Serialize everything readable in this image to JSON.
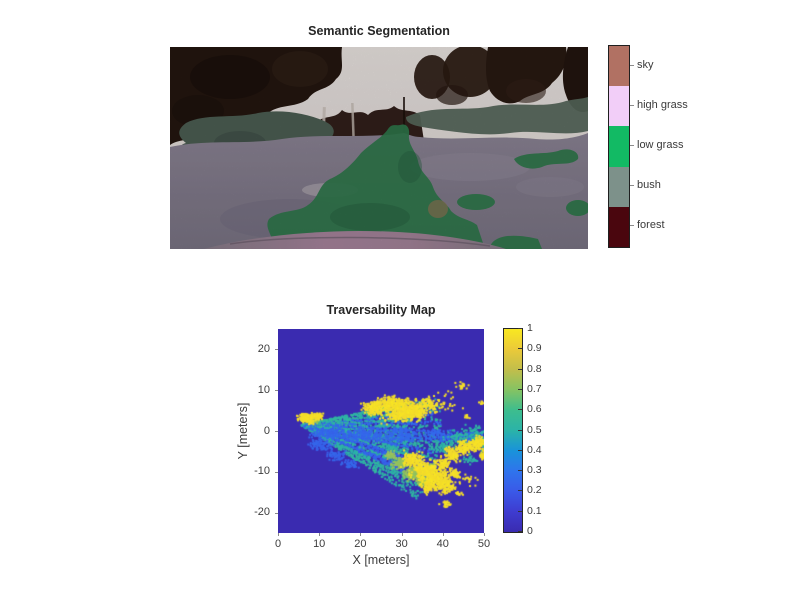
{
  "figure": {
    "background": "#FFFFFF"
  },
  "chart_data": [
    {
      "type": "image",
      "title": "Semantic Segmentation",
      "description": "Forward camera photo of a forest trail overlaid with semantic segmentation masks: dark forest trees at top, gray-green bush regions, purple-gray grass field, green low-grass trail in the center, pink vehicle hood at bottom",
      "classes": [
        {
          "label": "sky",
          "color": "#B17163"
        },
        {
          "label": "high grass",
          "color": "#F2CEF8"
        },
        {
          "label": "low grass",
          "color": "#12BA64"
        },
        {
          "label": "bush",
          "color": "#7D918A"
        },
        {
          "label": "forest",
          "color": "#4A060E"
        }
      ],
      "colorbar": {
        "position": "right"
      }
    },
    {
      "type": "heatmap",
      "title": "Traversability Map",
      "xlabel": "X [meters]",
      "ylabel": "Y [meters]",
      "xlim": [
        0,
        50
      ],
      "ylim": [
        -25,
        25
      ],
      "xticks": [
        "0",
        "10",
        "20",
        "30",
        "40",
        "50"
      ],
      "yticks": [
        "20",
        "10",
        "0",
        "-10",
        "-20"
      ],
      "background_value": 0,
      "colorbar": {
        "min": 0,
        "max": 1,
        "position": "right",
        "ticks": [
          "1",
          "0.9",
          "0.8",
          "0.7",
          "0.6",
          "0.5",
          "0.4",
          "0.3",
          "0.2",
          "0.1",
          "0"
        ]
      },
      "colormap": [
        [
          0.0,
          "#3A2BB0"
        ],
        [
          0.1,
          "#3E3CD0"
        ],
        [
          0.2,
          "#3A59E8"
        ],
        [
          0.3,
          "#2F74EC"
        ],
        [
          0.4,
          "#1993DA"
        ],
        [
          0.5,
          "#2BB3A8"
        ],
        [
          0.6,
          "#3DBD8E"
        ],
        [
          0.7,
          "#85C363"
        ],
        [
          0.8,
          "#C2BE4B"
        ],
        [
          0.9,
          "#EBCA39"
        ],
        [
          1.0,
          "#F9E821"
        ]
      ],
      "fan": {
        "apex_x": 5.5,
        "apex_y": 1.5,
        "angle_min_deg": -33,
        "angle_max_deg": 12,
        "radius_max": 34,
        "n": 3400,
        "value_main": 0.52,
        "value_alt": 0.25
      },
      "clusters": [
        {
          "v": 0.25,
          "x": 12,
          "y": -0.5,
          "rx": 4,
          "ry": 1.4,
          "n": 140
        },
        {
          "v": 0.25,
          "x": 20,
          "y": -1,
          "rx": 6,
          "ry": 1.8,
          "n": 200
        },
        {
          "v": 0.26,
          "x": 30,
          "y": -1.3,
          "rx": 6,
          "ry": 1.8,
          "n": 170
        },
        {
          "v": 0.26,
          "x": 40,
          "y": -1.4,
          "rx": 5,
          "ry": 1.6,
          "n": 120
        },
        {
          "v": 0.26,
          "x": 47,
          "y": -1.5,
          "rx": 3.5,
          "ry": 1.4,
          "n": 80
        },
        {
          "v": 0.24,
          "x": 10.5,
          "y": -3.5,
          "rx": 3,
          "ry": 1.5,
          "n": 90
        },
        {
          "v": 0.24,
          "x": 14,
          "y": -6,
          "rx": 2.5,
          "ry": 1.5,
          "n": 60
        },
        {
          "v": 0.25,
          "x": 17.5,
          "y": -8,
          "rx": 2,
          "ry": 1.2,
          "n": 40
        },
        {
          "v": 0.52,
          "x": 40,
          "y": -4,
          "rx": 3,
          "ry": 2,
          "n": 70
        },
        {
          "v": 0.52,
          "x": 44,
          "y": -1.5,
          "rx": 3.5,
          "ry": 2,
          "n": 60
        },
        {
          "v": 0.52,
          "x": 48,
          "y": -1,
          "rx": 2.5,
          "ry": 2.5,
          "n": 70
        },
        {
          "v": 0.52,
          "x": 50.5,
          "y": -4,
          "rx": 1.5,
          "ry": 2,
          "n": 40
        },
        {
          "v": 0.52,
          "x": 46.5,
          "y": -7,
          "rx": 2,
          "ry": 1.5,
          "n": 30
        },
        {
          "v": 0.72,
          "x": 8.5,
          "y": 2.5,
          "rx": 1.5,
          "ry": 0.8,
          "n": 50
        },
        {
          "v": 0.72,
          "x": 29.5,
          "y": -8,
          "rx": 2,
          "ry": 1.5,
          "n": 90
        },
        {
          "v": 0.72,
          "x": 32.5,
          "y": -10.5,
          "rx": 2,
          "ry": 1.5,
          "n": 110
        },
        {
          "v": 0.72,
          "x": 35,
          "y": -12,
          "rx": 1.5,
          "ry": 1.2,
          "n": 70
        },
        {
          "v": 0.72,
          "x": 27.5,
          "y": -6,
          "rx": 1.5,
          "ry": 1,
          "n": 50
        },
        {
          "v": 0.72,
          "x": 37.5,
          "y": -9,
          "rx": 1.2,
          "ry": 1,
          "n": 40
        },
        {
          "v": 0.97,
          "x": 7,
          "y": 3,
          "rx": 2,
          "ry": 1.2,
          "n": 170
        },
        {
          "v": 0.97,
          "x": 9.5,
          "y": 3.5,
          "rx": 1.5,
          "ry": 1,
          "n": 60
        },
        {
          "v": 0.97,
          "x": 23,
          "y": 5.5,
          "rx": 2.5,
          "ry": 1.8,
          "n": 140
        },
        {
          "v": 0.97,
          "x": 27,
          "y": 6.5,
          "rx": 3,
          "ry": 2,
          "n": 200
        },
        {
          "v": 0.97,
          "x": 30.5,
          "y": 5.5,
          "rx": 3,
          "ry": 2.5,
          "n": 260
        },
        {
          "v": 0.97,
          "x": 33.5,
          "y": 4.5,
          "rx": 2.5,
          "ry": 2,
          "n": 160
        },
        {
          "v": 0.97,
          "x": 36.5,
          "y": 6.5,
          "rx": 2.5,
          "ry": 1.8,
          "n": 90
        },
        {
          "v": 0.97,
          "x": 29,
          "y": 3.5,
          "rx": 4,
          "ry": 1.5,
          "n": 90
        },
        {
          "v": 0.97,
          "x": 40,
          "y": 7,
          "rx": 4,
          "ry": 3,
          "n": 35
        },
        {
          "v": 0.97,
          "x": 44.5,
          "y": 11,
          "rx": 1.5,
          "ry": 1,
          "n": 22
        },
        {
          "v": 0.97,
          "x": 49.5,
          "y": 7,
          "rx": 0.7,
          "ry": 0.5,
          "n": 8
        },
        {
          "v": 0.97,
          "x": 46,
          "y": 3.5,
          "rx": 1,
          "ry": 0.7,
          "n": 10
        },
        {
          "v": 0.97,
          "x": 32.5,
          "y": -7,
          "rx": 2.5,
          "ry": 2,
          "n": 140
        },
        {
          "v": 0.97,
          "x": 35.5,
          "y": -9.5,
          "rx": 3,
          "ry": 2.5,
          "n": 220
        },
        {
          "v": 0.97,
          "x": 38.5,
          "y": -11.5,
          "rx": 3,
          "ry": 2.5,
          "n": 240
        },
        {
          "v": 0.97,
          "x": 41,
          "y": -13.5,
          "rx": 2,
          "ry": 1.8,
          "n": 110
        },
        {
          "v": 0.97,
          "x": 36.5,
          "y": -13.5,
          "rx": 2,
          "ry": 1.8,
          "n": 90
        },
        {
          "v": 0.97,
          "x": 40,
          "y": -8,
          "rx": 2,
          "ry": 1.5,
          "n": 90
        },
        {
          "v": 0.97,
          "x": 42.5,
          "y": -5.5,
          "rx": 2,
          "ry": 1.8,
          "n": 110
        },
        {
          "v": 0.97,
          "x": 45.5,
          "y": -4,
          "rx": 2.2,
          "ry": 1.8,
          "n": 130
        },
        {
          "v": 0.97,
          "x": 48.5,
          "y": -3,
          "rx": 1.8,
          "ry": 1.8,
          "n": 110
        },
        {
          "v": 0.97,
          "x": 50,
          "y": -6,
          "rx": 1.2,
          "ry": 1.5,
          "n": 50
        },
        {
          "v": 0.97,
          "x": 44,
          "y": -15.5,
          "rx": 1,
          "ry": 0.7,
          "n": 16
        },
        {
          "v": 0.97,
          "x": 40.5,
          "y": -18,
          "rx": 1.5,
          "ry": 0.8,
          "n": 22
        },
        {
          "v": 0.97,
          "x": 43,
          "y": -10.5,
          "rx": 1.5,
          "ry": 1.2,
          "n": 60
        },
        {
          "v": 0.97,
          "x": 46,
          "y": -12,
          "rx": 2,
          "ry": 1.5,
          "n": 18
        }
      ]
    }
  ]
}
